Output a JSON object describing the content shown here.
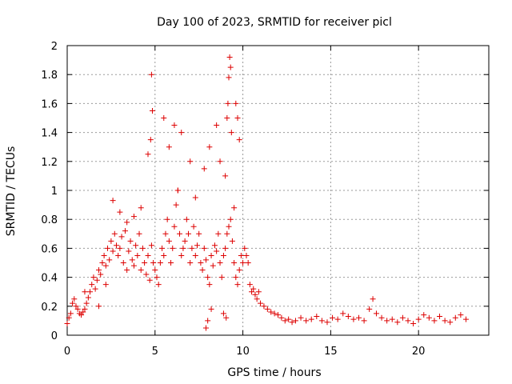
{
  "chart_data": {
    "type": "scatter",
    "title": "Day 100 of 2023, SRMTID for receiver picl",
    "xlabel": "GPS time / hours",
    "ylabel": "SRMTID / TECUs",
    "xlim": [
      0,
      24
    ],
    "ylim": [
      0,
      2
    ],
    "xticks": [
      0,
      5,
      10,
      15,
      20
    ],
    "xtick_labels": [
      "0",
      "5",
      "10",
      "15",
      "20"
    ],
    "yticks": [
      0,
      0.2,
      0.4,
      0.6,
      0.8,
      1,
      1.2,
      1.4,
      1.6,
      1.8,
      2
    ],
    "ytick_labels": [
      "0",
      "0.2",
      "0.4",
      "0.6",
      "0.8",
      "1",
      "1.2",
      "1.4",
      "1.6",
      "1.8",
      "2"
    ],
    "grid": true,
    "marker": "+",
    "color": "#dd0000",
    "series": [
      {
        "name": "SRMTID",
        "x": [
          0.0,
          0.1,
          0.2,
          0.3,
          0.4,
          0.5,
          0.6,
          0.7,
          0.8,
          0.9,
          1.0,
          1.1,
          1.2,
          1.3,
          1.4,
          1.5,
          1.6,
          1.7,
          1.8,
          1.9,
          2.0,
          2.1,
          2.2,
          2.3,
          2.4,
          2.5,
          2.6,
          2.7,
          2.8,
          2.9,
          3.0,
          3.1,
          3.2,
          3.3,
          3.4,
          3.5,
          3.6,
          3.7,
          3.8,
          3.9,
          4.0,
          4.1,
          4.2,
          4.3,
          4.4,
          4.5,
          4.6,
          4.7,
          4.8,
          4.9,
          5.0,
          5.1,
          5.2,
          5.3,
          5.4,
          5.5,
          5.6,
          5.7,
          5.8,
          5.9,
          6.0,
          6.1,
          6.2,
          6.3,
          6.4,
          6.5,
          6.6,
          6.7,
          6.8,
          6.9,
          7.0,
          7.1,
          7.2,
          7.3,
          7.4,
          7.5,
          7.6,
          7.7,
          7.8,
          7.9,
          8.0,
          8.1,
          8.2,
          8.3,
          8.4,
          8.5,
          8.6,
          8.7,
          8.8,
          8.9,
          9.0,
          9.1,
          9.2,
          9.3,
          9.4,
          9.5,
          9.6,
          9.7,
          9.8,
          9.9,
          10.0,
          10.1,
          10.2,
          10.3,
          10.4,
          10.5,
          10.6,
          10.7,
          10.8,
          10.9,
          11.0,
          11.2,
          11.4,
          11.6,
          11.8,
          12.0,
          12.2,
          12.4,
          12.6,
          12.8,
          13.0,
          13.3,
          13.6,
          13.9,
          14.2,
          14.5,
          14.8,
          15.1,
          15.4,
          15.7,
          16.0,
          16.3,
          16.6,
          16.9,
          17.2,
          17.4,
          17.6,
          17.9,
          18.2,
          18.5,
          18.8,
          19.1,
          19.4,
          19.7,
          20.0,
          20.3,
          20.6,
          20.9,
          21.2,
          21.5,
          21.8,
          22.1,
          22.4,
          22.7,
          1.0,
          1.8,
          2.2,
          2.6,
          3.0,
          3.4,
          3.8,
          4.2,
          4.6,
          4.75,
          4.8,
          4.85,
          5.5,
          5.8,
          6.1,
          6.3,
          6.5,
          7.0,
          7.3,
          7.8,
          8.1,
          8.5,
          8.7,
          9.0,
          9.1,
          9.15,
          9.2,
          9.25,
          9.3,
          9.35,
          9.6,
          9.7,
          9.8,
          7.9,
          8.0,
          8.2,
          8.9,
          9.05,
          9.5
        ],
        "y": [
          0.08,
          0.12,
          0.15,
          0.22,
          0.25,
          0.2,
          0.18,
          0.15,
          0.14,
          0.16,
          0.18,
          0.22,
          0.26,
          0.3,
          0.35,
          0.4,
          0.32,
          0.38,
          0.45,
          0.42,
          0.5,
          0.55,
          0.48,
          0.6,
          0.52,
          0.65,
          0.58,
          0.7,
          0.62,
          0.55,
          0.6,
          0.68,
          0.5,
          0.72,
          0.45,
          0.58,
          0.65,
          0.52,
          0.48,
          0.62,
          0.55,
          0.7,
          0.45,
          0.6,
          0.5,
          0.42,
          0.55,
          0.38,
          0.62,
          0.5,
          0.45,
          0.4,
          0.35,
          0.5,
          0.6,
          0.55,
          0.7,
          0.8,
          0.65,
          0.5,
          0.6,
          0.75,
          0.9,
          1.0,
          0.7,
          0.55,
          0.6,
          0.65,
          0.8,
          0.7,
          0.5,
          0.6,
          0.75,
          0.55,
          0.62,
          0.7,
          0.5,
          0.45,
          0.6,
          0.52,
          0.4,
          0.35,
          0.55,
          0.48,
          0.62,
          0.58,
          0.7,
          0.5,
          0.4,
          0.55,
          0.6,
          0.7,
          0.75,
          0.8,
          0.65,
          0.5,
          0.4,
          0.35,
          0.45,
          0.55,
          0.5,
          0.6,
          0.55,
          0.5,
          0.35,
          0.3,
          0.32,
          0.28,
          0.25,
          0.3,
          0.22,
          0.2,
          0.18,
          0.16,
          0.15,
          0.14,
          0.12,
          0.1,
          0.11,
          0.09,
          0.1,
          0.12,
          0.1,
          0.11,
          0.13,
          0.1,
          0.09,
          0.12,
          0.11,
          0.15,
          0.13,
          0.11,
          0.12,
          0.1,
          0.18,
          0.25,
          0.15,
          0.12,
          0.1,
          0.11,
          0.09,
          0.12,
          0.1,
          0.08,
          0.11,
          0.14,
          0.12,
          0.1,
          0.13,
          0.1,
          0.09,
          0.12,
          0.14,
          0.11,
          0.3,
          0.2,
          0.35,
          0.93,
          0.85,
          0.78,
          0.82,
          0.88,
          1.25,
          1.35,
          1.8,
          1.55,
          1.5,
          1.3,
          1.45,
          1.0,
          1.4,
          1.2,
          0.95,
          1.15,
          1.3,
          1.45,
          1.2,
          1.1,
          1.5,
          1.6,
          1.78,
          1.92,
          1.85,
          1.4,
          1.6,
          1.5,
          1.35,
          0.05,
          0.1,
          0.18,
          0.15,
          0.12,
          0.88
        ]
      }
    ]
  }
}
